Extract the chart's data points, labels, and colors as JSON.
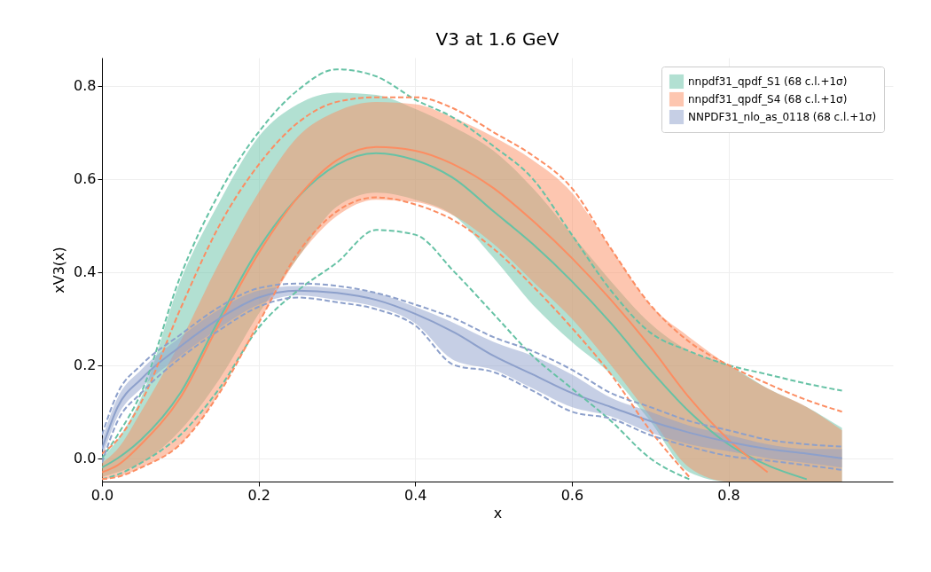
{
  "chart_data": {
    "type": "line",
    "title": "V3 at 1.6 GeV",
    "xlabel": "x",
    "ylabel": "xV3(x)",
    "x": [
      0,
      0.02,
      0.05,
      0.1,
      0.15,
      0.2,
      0.25,
      0.3,
      0.35,
      0.4,
      0.45,
      0.5,
      0.55,
      0.6,
      0.65,
      0.7,
      0.75,
      0.8,
      0.85,
      0.9,
      0.945
    ],
    "xlim": [
      0,
      1.01
    ],
    "xticks": [
      {
        "value": 0,
        "label": "0.0"
      },
      0.2,
      0.4,
      0.6,
      0.8
    ],
    "ylim": [
      -0.05,
      0.86
    ],
    "yticks": [
      {
        "value": 0,
        "label": "0.0"
      },
      0.2,
      0.4,
      0.6,
      0.8
    ],
    "grid": true,
    "legend": "top right",
    "series": [
      {
        "name": "nnpdf31_qpdf_S1 (68 c.l.+1σ)",
        "color": "#66c2a5",
        "values": [
          -0.02,
          0.0,
          0.04,
          0.14,
          0.3,
          0.45,
          0.56,
          0.63,
          0.655,
          0.64,
          0.6,
          0.53,
          0.46,
          0.38,
          0.29,
          0.19,
          0.1,
          0.03,
          -0.015,
          -0.045,
          null
        ],
        "upper": [
          0.0,
          0.04,
          0.13,
          0.38,
          0.55,
          0.69,
          0.76,
          0.785,
          0.78,
          0.75,
          0.71,
          0.66,
          0.58,
          0.48,
          0.38,
          0.29,
          0.23,
          0.2,
          0.15,
          0.11,
          0.065
        ],
        "lower": [
          -0.04,
          -0.03,
          -0.01,
          0.06,
          0.17,
          0.31,
          0.43,
          0.54,
          0.57,
          0.555,
          0.52,
          0.43,
          0.33,
          0.25,
          0.18,
          0.08,
          -0.03,
          -0.05,
          -0.05,
          -0.05,
          -0.05
        ]
      },
      {
        "name": "nnpdf31_qpdf_S4 (68 c.l.+1σ)",
        "color": "#fc8d62",
        "values": [
          -0.03,
          -0.015,
          0.03,
          0.13,
          0.29,
          0.44,
          0.56,
          0.64,
          0.668,
          0.66,
          0.63,
          0.58,
          0.51,
          0.43,
          0.34,
          0.24,
          0.13,
          0.04,
          -0.03,
          null,
          null
        ],
        "upper": [
          -0.01,
          0.02,
          0.1,
          0.25,
          0.42,
          0.57,
          0.69,
          0.745,
          0.765,
          0.76,
          0.73,
          0.69,
          0.64,
          0.57,
          0.45,
          0.33,
          0.26,
          0.2,
          0.15,
          0.11,
          0.06
        ],
        "lower": [
          -0.045,
          -0.04,
          -0.02,
          0.03,
          0.14,
          0.29,
          0.43,
          0.52,
          0.555,
          0.55,
          0.52,
          0.46,
          0.38,
          0.3,
          0.2,
          0.09,
          -0.02,
          -0.05,
          -0.05,
          -0.05,
          -0.05
        ]
      },
      {
        "name": "NNPDF31_nlo_as_0118 (68 c.l.+1σ)",
        "color": "#8da0cb",
        "values": [
          0.02,
          0.11,
          0.17,
          0.24,
          0.3,
          0.345,
          0.36,
          0.355,
          0.34,
          0.31,
          0.27,
          0.22,
          0.18,
          0.14,
          0.11,
          0.08,
          0.055,
          0.035,
          0.02,
          0.01,
          0.0
        ],
        "upper": [
          0.04,
          0.13,
          0.19,
          0.26,
          0.32,
          0.36,
          0.37,
          0.365,
          0.355,
          0.325,
          0.29,
          0.25,
          0.22,
          0.18,
          0.13,
          0.1,
          0.07,
          0.05,
          0.03,
          0.02,
          0.02
        ],
        "lower": [
          0.0,
          0.09,
          0.15,
          0.22,
          0.28,
          0.33,
          0.35,
          0.34,
          0.325,
          0.29,
          0.21,
          0.19,
          0.15,
          0.11,
          0.09,
          0.055,
          0.03,
          0.015,
          0.0,
          -0.01,
          -0.02
        ]
      },
      {
        "color": "#66c2a5",
        "line_style": "dashed",
        "values": [
          0.0,
          0.05,
          0.14,
          0.39,
          0.57,
          0.7,
          0.79,
          0.835,
          0.82,
          0.77,
          0.73,
          0.67,
          0.6,
          0.48,
          0.36,
          0.27,
          0.23,
          0.2,
          0.18,
          0.16,
          0.145
        ]
      },
      {
        "color": "#66c2a5",
        "line_style": "dashed",
        "values": [
          -0.045,
          -0.035,
          -0.01,
          0.05,
          0.15,
          0.28,
          0.36,
          0.42,
          0.49,
          0.48,
          0.4,
          0.31,
          0.22,
          0.15,
          0.08,
          0.0,
          -0.045,
          null,
          null,
          null,
          null
        ]
      },
      {
        "color": "#fc8d62",
        "line_style": "dashed",
        "values": [
          0.01,
          0.04,
          0.12,
          0.32,
          0.5,
          0.63,
          0.72,
          0.765,
          0.775,
          0.775,
          0.75,
          0.7,
          0.65,
          0.58,
          0.45,
          0.33,
          0.25,
          0.2,
          0.16,
          0.125,
          0.1
        ]
      },
      {
        "color": "#fc8d62",
        "line_style": "dashed",
        "values": [
          -0.045,
          -0.04,
          -0.02,
          0.03,
          0.14,
          0.29,
          0.44,
          0.53,
          0.56,
          0.545,
          0.51,
          0.45,
          0.37,
          0.28,
          0.18,
          0.06,
          -0.04,
          null,
          null,
          null,
          null
        ]
      },
      {
        "color": "#8da0cb",
        "line_style": "dashed",
        "values": [
          0.05,
          0.14,
          0.2,
          0.265,
          0.325,
          0.365,
          0.375,
          0.37,
          0.355,
          0.33,
          0.3,
          0.26,
          0.23,
          0.19,
          0.14,
          0.11,
          0.08,
          0.06,
          0.04,
          0.03,
          0.025
        ]
      },
      {
        "color": "#8da0cb",
        "line_style": "dashed",
        "values": [
          -0.01,
          0.08,
          0.14,
          0.215,
          0.275,
          0.325,
          0.345,
          0.335,
          0.32,
          0.285,
          0.2,
          0.185,
          0.145,
          0.1,
          0.085,
          0.05,
          0.025,
          0.005,
          -0.005,
          -0.015,
          -0.025
        ]
      }
    ]
  }
}
